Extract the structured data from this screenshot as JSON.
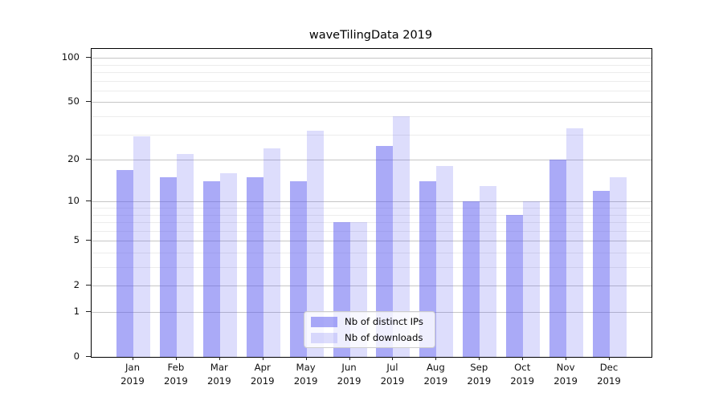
{
  "figure": {
    "title": "waveTilingData 2019"
  },
  "chart_data": {
    "type": "bar",
    "title": "waveTilingData 2019",
    "categories": [
      "Jan 2019",
      "Feb 2019",
      "Mar 2019",
      "Apr 2019",
      "May 2019",
      "Jun 2019",
      "Jul 2019",
      "Aug 2019",
      "Sep 2019",
      "Oct 2019",
      "Nov 2019",
      "Dec 2019"
    ],
    "x_tick_month_labels": [
      "Jan",
      "Feb",
      "Mar",
      "Apr",
      "May",
      "Jun",
      "Jul",
      "Aug",
      "Sep",
      "Oct",
      "Nov",
      "Dec"
    ],
    "x_tick_year_label": "2019",
    "series": [
      {
        "name": "Nb of distinct IPs",
        "color": "rgba(85,85,240,0.5)",
        "values": [
          17,
          15,
          14,
          15,
          14,
          7,
          25,
          14,
          10,
          8,
          20,
          12
        ]
      },
      {
        "name": "Nb of downloads",
        "color": "rgba(85,85,240,0.2)",
        "values": [
          29,
          22,
          16,
          24,
          32,
          7,
          40,
          18,
          13,
          10,
          33,
          15
        ]
      }
    ],
    "y_axis": {
      "scale": "log1p",
      "major_ticks": [
        0,
        1,
        2,
        5,
        10,
        20,
        50,
        100
      ],
      "minor_ticks": [
        3,
        4,
        6,
        7,
        8,
        9,
        30,
        40,
        60,
        70,
        80,
        90
      ],
      "max": 115
    },
    "legend": {
      "position": "lower center",
      "entries": [
        "Nb of distinct IPs",
        "Nb of downloads"
      ]
    },
    "grid": {
      "major_color": "#c6c6c6",
      "minor_color": "#ececec"
    },
    "xlabel": "",
    "ylabel": ""
  }
}
